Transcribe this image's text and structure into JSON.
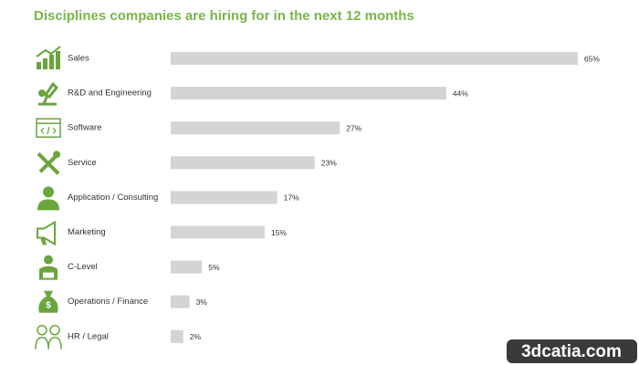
{
  "chart_data": {
    "type": "bar",
    "orientation": "horizontal",
    "title": "Disciplines companies are hiring for in the next 12 months",
    "categories": [
      "Sales",
      "R&D and Engineering",
      "Software",
      "Service",
      "Application / Consulting",
      "Marketing",
      "C-Level",
      "Operations / Finance",
      "HR / Legal"
    ],
    "values": [
      65,
      44,
      27,
      23,
      17,
      15,
      5,
      3,
      2
    ],
    "value_labels": [
      "65%",
      "44%",
      "27%",
      "23%",
      "17%",
      "15%",
      "5%",
      "3%",
      "2%"
    ],
    "color": "#d4d4d4"
  },
  "watermark": "3dcatia.com"
}
